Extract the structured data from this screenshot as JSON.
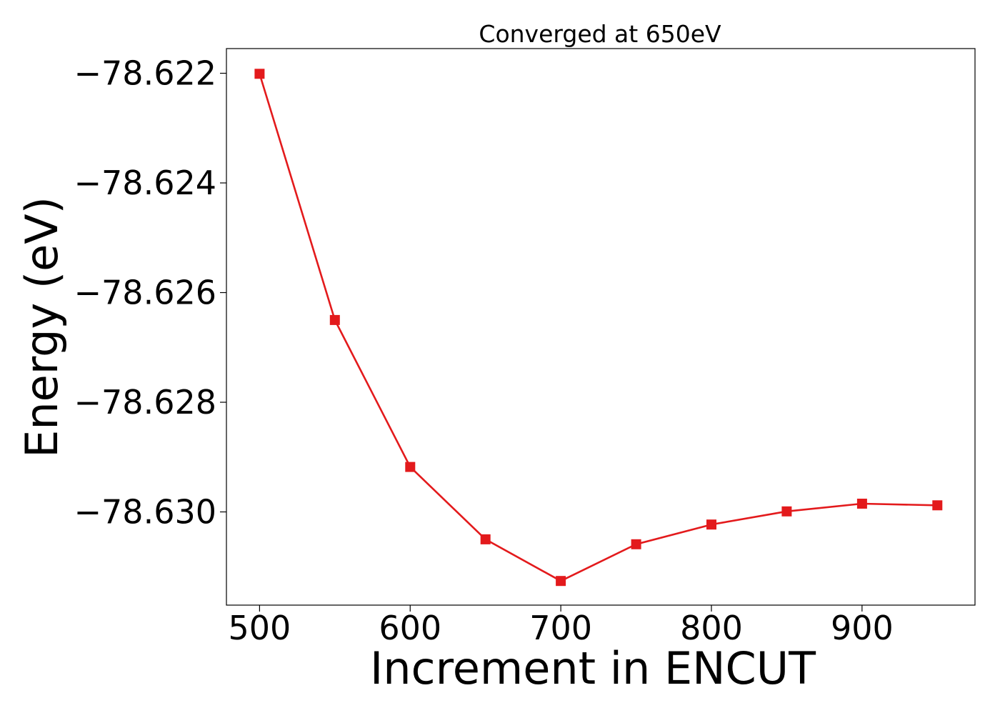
{
  "chart_data": {
    "type": "line",
    "title": "Converged at 650eV",
    "xlabel": "Increment in ENCUT",
    "ylabel": "Energy (eV)",
    "xlim": [
      478,
      975
    ],
    "ylim": [
      -78.6317,
      -78.62155
    ],
    "x_ticks": [
      500,
      600,
      700,
      800,
      900
    ],
    "x_tick_labels": [
      "500",
      "600",
      "700",
      "800",
      "900"
    ],
    "y_ticks": [
      -78.622,
      -78.624,
      -78.626,
      -78.628,
      -78.63
    ],
    "y_tick_labels": [
      "−78.622",
      "−78.624",
      "−78.626",
      "−78.628",
      "−78.630"
    ],
    "grid": false,
    "series": [
      {
        "color": "#e31a1c",
        "marker": "square",
        "x": [
          500,
          550,
          600,
          650,
          700,
          750,
          800,
          850,
          900,
          950
        ],
        "y": [
          -78.62201,
          -78.6265,
          -78.62918,
          -78.6305,
          -78.63126,
          -78.63059,
          -78.63023,
          -78.62999,
          -78.62985,
          -78.62988
        ]
      }
    ]
  }
}
